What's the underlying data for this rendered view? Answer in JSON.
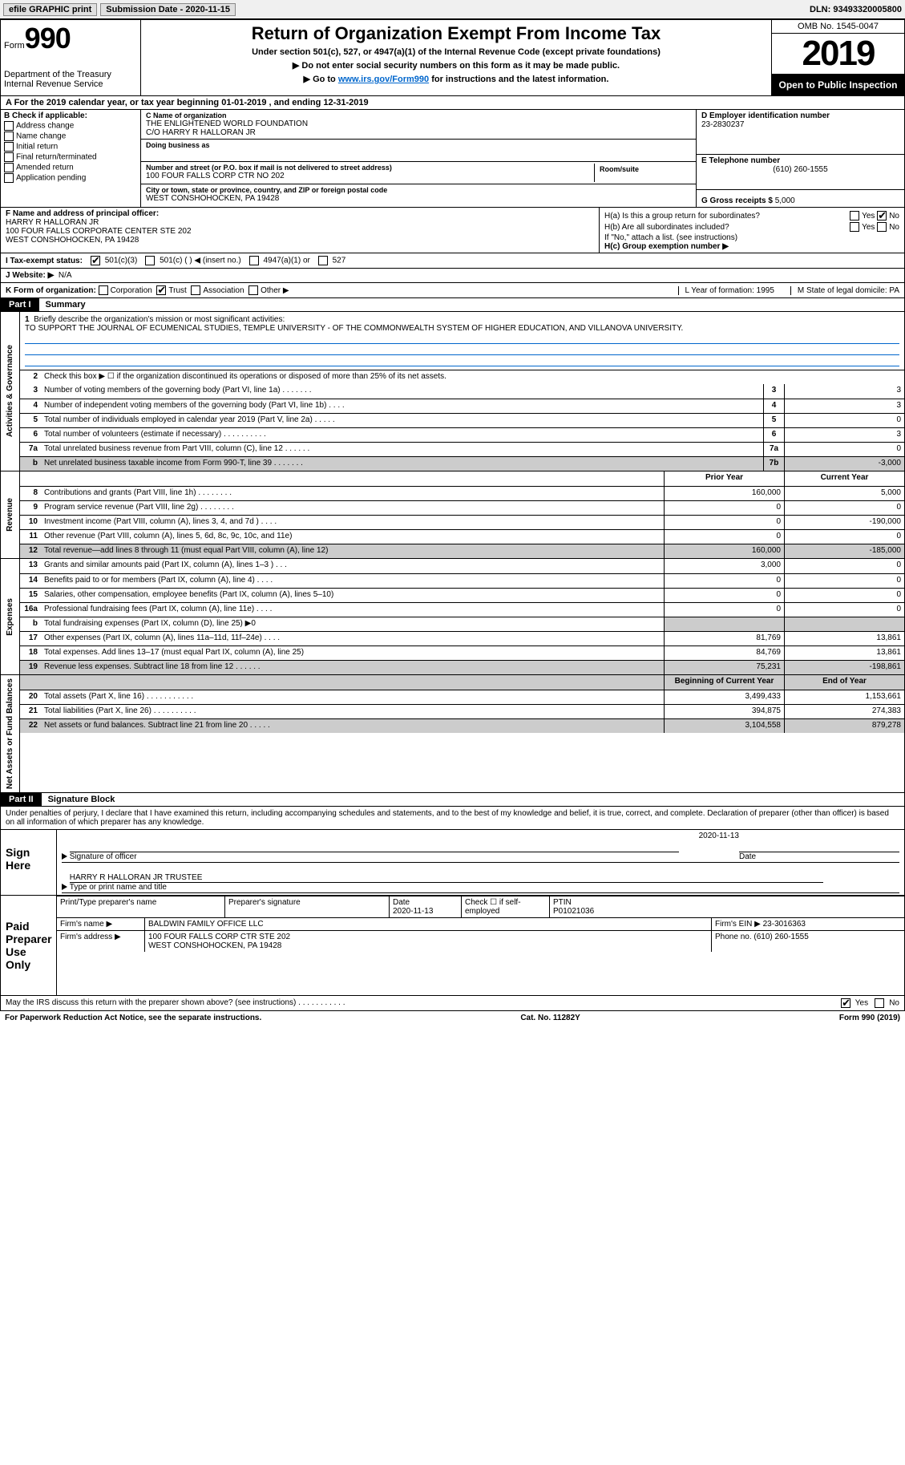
{
  "topbar": {
    "efile": "efile GRAPHIC print",
    "submission_label": "Submission Date - ",
    "submission_date": "2020-11-15",
    "dln_label": "DLN: ",
    "dln": "93493320005800"
  },
  "header": {
    "form_label": "Form",
    "form_no": "990",
    "dept": "Department of the Treasury\nInternal Revenue Service",
    "title": "Return of Organization Exempt From Income Tax",
    "sub1": "Under section 501(c), 527, or 4947(a)(1) of the Internal Revenue Code (except private foundations)",
    "sub2": "▶ Do not enter social security numbers on this form as it may be made public.",
    "sub3_pre": "▶ Go to ",
    "sub3_link": "www.irs.gov/Form990",
    "sub3_post": " for instructions and the latest information.",
    "omb": "OMB No. 1545-0047",
    "year": "2019",
    "open": "Open to Public Inspection"
  },
  "period": {
    "prefix": "A For the 2019 calendar year, or tax year beginning ",
    "begin": "01-01-2019",
    "mid": " , and ending ",
    "end": "12-31-2019"
  },
  "B": {
    "hd": "B Check if applicable:",
    "opts": [
      "Address change",
      "Name change",
      "Initial return",
      "Final return/terminated",
      "Amended return",
      "Application pending"
    ]
  },
  "C": {
    "name_lbl": "C Name of organization",
    "name1": "THE ENLIGHTENED WORLD FOUNDATION",
    "name2": "C/O HARRY R HALLORAN JR",
    "dba_lbl": "Doing business as",
    "dba": "",
    "street_lbl": "Number and street (or P.O. box if mail is not delivered to street address)",
    "street": "100 FOUR FALLS CORP CTR NO 202",
    "room_lbl": "Room/suite",
    "room": "",
    "city_lbl": "City or town, state or province, country, and ZIP or foreign postal code",
    "city": "WEST CONSHOHOCKEN, PA  19428"
  },
  "D": {
    "lbl": "D Employer identification number",
    "val": "23-2830237"
  },
  "E": {
    "lbl": "E Telephone number",
    "val": "(610) 260-1555"
  },
  "G": {
    "lbl": "G Gross receipts $ ",
    "val": "5,000"
  },
  "F": {
    "lbl": "F Name and address of principal officer:",
    "l1": "HARRY R HALLORAN JR",
    "l2": "100 FOUR FALLS CORPORATE CENTER STE 202",
    "l3": "WEST CONSHOHOCKEN, PA  19428"
  },
  "H": {
    "a_lbl": "H(a)  Is this a group return for subordinates?",
    "a_yes": "Yes",
    "a_no": "No",
    "b_lbl": "H(b)  Are all subordinates included?",
    "b_yes": "Yes",
    "b_no": "No",
    "b_note": "If \"No,\" attach a list. (see instructions)",
    "c_lbl": "H(c)  Group exemption number ▶"
  },
  "I": {
    "lbl": "I  Tax-exempt status:",
    "o1": "501(c)(3)",
    "o2": "501(c) (  ) ◀ (insert no.)",
    "o3": "4947(a)(1) or",
    "o4": "527"
  },
  "J": {
    "lbl": "J  Website: ▶",
    "val": "N/A"
  },
  "K": {
    "lbl": "K Form of organization:",
    "o1": "Corporation",
    "o2": "Trust",
    "o3": "Association",
    "o4": "Other ▶",
    "L": "L Year of formation: 1995",
    "M": "M State of legal domicile: PA"
  },
  "part1": {
    "bar": "Part I",
    "title": "Summary"
  },
  "briefly": {
    "no": "1",
    "lbl": "Briefly describe the organization's mission or most significant activities:",
    "text": "TO SUPPORT THE JOURNAL OF ECUMENICAL STUDIES, TEMPLE UNIVERSITY - OF THE COMMONWEALTH SYSTEM OF HIGHER EDUCATION, AND VILLANOVA UNIVERSITY."
  },
  "line2": {
    "no": "2",
    "desc": "Check this box ▶ ☐  if the organization discontinued its operations or disposed of more than 25% of its net assets."
  },
  "govlines": [
    {
      "no": "3",
      "desc": "Number of voting members of the governing body (Part VI, line 1a)  .    .    .    .    .    .    .",
      "cn": "3",
      "val": "3"
    },
    {
      "no": "4",
      "desc": "Number of independent voting members of the governing body (Part VI, line 1b)  .    .    .    .",
      "cn": "4",
      "val": "3"
    },
    {
      "no": "5",
      "desc": "Total number of individuals employed in calendar year 2019 (Part V, line 2a)  .    .    .    .    .",
      "cn": "5",
      "val": "0"
    },
    {
      "no": "6",
      "desc": "Total number of volunteers (estimate if necessary)  .    .    .    .    .    .    .    .    .    .",
      "cn": "6",
      "val": "3"
    },
    {
      "no": "7a",
      "desc": "Total unrelated business revenue from Part VIII, column (C), line 12  .    .    .    .    .    .",
      "cn": "7a",
      "val": "0"
    },
    {
      "no": "b",
      "desc": "Net unrelated business taxable income from Form 990-T, line 39  .    .    .    .    .    .    .",
      "cn": "7b",
      "val": "-3,000",
      "grey": true
    }
  ],
  "revhdr": {
    "prior": "Prior Year",
    "curr": "Current Year"
  },
  "revlines": [
    {
      "no": "8",
      "desc": "Contributions and grants (Part VIII, line 1h)  .    .    .    .    .    .    .    .",
      "a": "160,000",
      "b": "5,000"
    },
    {
      "no": "9",
      "desc": "Program service revenue (Part VIII, line 2g)  .    .    .    .    .    .    .    .",
      "a": "0",
      "b": "0"
    },
    {
      "no": "10",
      "desc": "Investment income (Part VIII, column (A), lines 3, 4, and 7d )  .    .    .    .",
      "a": "0",
      "b": "-190,000"
    },
    {
      "no": "11",
      "desc": "Other revenue (Part VIII, column (A), lines 5, 6d, 8c, 9c, 10c, and 11e)",
      "a": "0",
      "b": "0"
    },
    {
      "no": "12",
      "desc": "Total revenue—add lines 8 through 11 (must equal Part VIII, column (A), line 12)",
      "a": "160,000",
      "b": "-185,000",
      "grey": true
    }
  ],
  "explines": [
    {
      "no": "13",
      "desc": "Grants and similar amounts paid (Part IX, column (A), lines 1–3 ) .    .    .",
      "a": "3,000",
      "b": "0"
    },
    {
      "no": "14",
      "desc": "Benefits paid to or for members (Part IX, column (A), line 4)  .    .    .    .",
      "a": "0",
      "b": "0"
    },
    {
      "no": "15",
      "desc": "Salaries, other compensation, employee benefits (Part IX, column (A), lines 5–10)",
      "a": "0",
      "b": "0"
    },
    {
      "no": "16a",
      "desc": "Professional fundraising fees (Part IX, column (A), line 11e)  .    .    .    .",
      "a": "0",
      "b": "0"
    },
    {
      "no": "b",
      "desc": "Total fundraising expenses (Part IX, column (D), line 25) ▶0",
      "a": "",
      "b": "",
      "greyab": true
    },
    {
      "no": "17",
      "desc": "Other expenses (Part IX, column (A), lines 11a–11d, 11f–24e)  .    .    .    .",
      "a": "81,769",
      "b": "13,861"
    },
    {
      "no": "18",
      "desc": "Total expenses. Add lines 13–17 (must equal Part IX, column (A), line 25)",
      "a": "84,769",
      "b": "13,861"
    },
    {
      "no": "19",
      "desc": "Revenue less expenses. Subtract line 18 from line 12  .    .    .    .    .    .",
      "a": "75,231",
      "b": "-198,861",
      "grey": true
    }
  ],
  "balhdr": {
    "prior": "Beginning of Current Year",
    "curr": "End of Year"
  },
  "ballines": [
    {
      "no": "20",
      "desc": "Total assets (Part X, line 16)  .    .    .    .    .    .    .    .    .    .    .",
      "a": "3,499,433",
      "b": "1,153,661"
    },
    {
      "no": "21",
      "desc": "Total liabilities (Part X, line 26) .    .    .    .    .    .    .    .    .    .",
      "a": "394,875",
      "b": "274,383"
    },
    {
      "no": "22",
      "desc": "Net assets or fund balances. Subtract line 21 from line 20 .    .    .    .    .",
      "a": "3,104,558",
      "b": "879,278",
      "grey": true
    }
  ],
  "sidelabels": {
    "gov": "Activities & Governance",
    "rev": "Revenue",
    "exp": "Expenses",
    "bal": "Net Assets or Fund Balances"
  },
  "part2": {
    "bar": "Part II",
    "title": "Signature Block"
  },
  "perjury": "Under penalties of perjury, I declare that I have examined this return, including accompanying schedules and statements, and to the best of my knowledge and belief, it is true, correct, and complete. Declaration of preparer (other than officer) is based on all information of which preparer has any knowledge.",
  "sign": {
    "side": "Sign Here",
    "sigoff": "Signature of officer",
    "date_lbl": "Date",
    "date": "2020-11-13",
    "name": "HARRY R HALLORAN JR  TRUSTEE",
    "name_lbl": "Type or print name and title"
  },
  "paid": {
    "side": "Paid Preparer Use Only",
    "hdrs": [
      "Print/Type preparer's name",
      "Preparer's signature",
      "Date",
      "Check ☐ if self-employed",
      "PTIN"
    ],
    "row1": [
      "",
      "",
      "2020-11-13",
      "",
      "P01021036"
    ],
    "firm_lbl": "Firm's name    ▶",
    "firm": "BALDWIN FAMILY OFFICE LLC",
    "ein_lbl": "Firm's EIN ▶",
    "ein": "23-3016363",
    "addr_lbl": "Firm's address ▶",
    "addr1": "100 FOUR FALLS CORP CTR STE 202",
    "addr2": "WEST CONSHOHOCKEN, PA  19428",
    "phone_lbl": "Phone no.",
    "phone": "(610) 260-1555"
  },
  "disclose": {
    "q": "May the IRS discuss this return with the preparer shown above? (see instructions)  .    .    .    .    .    .    .    .    .    .    .",
    "yes": "Yes",
    "no": "No"
  },
  "foot": {
    "left": "For Paperwork Reduction Act Notice, see the separate instructions.",
    "mid": "Cat. No. 11282Y",
    "right": "Form 990 (2019)"
  },
  "style": {
    "accent": "#000000",
    "link": "#0066cc",
    "grey": "#cccccc"
  }
}
